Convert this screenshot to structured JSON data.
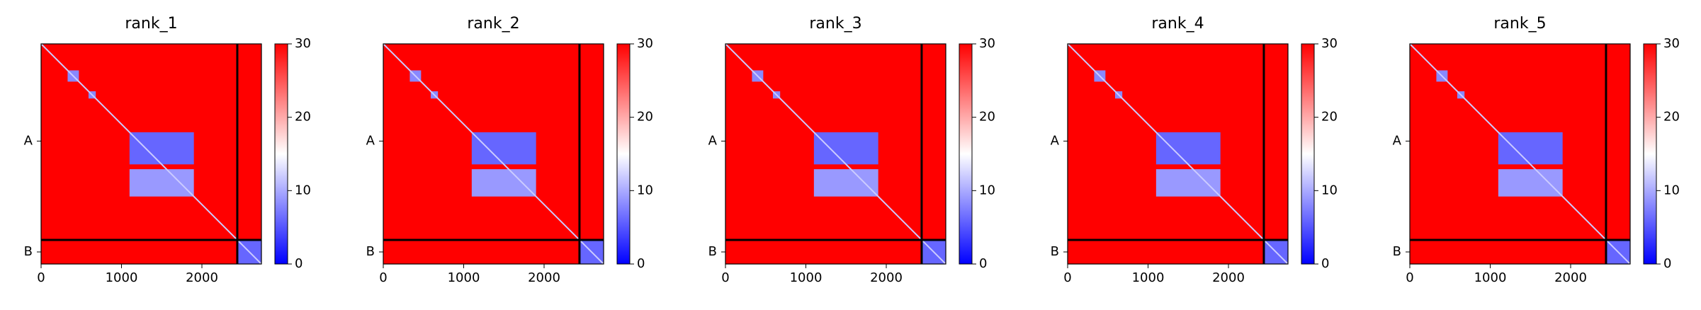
{
  "chart_data": [
    {
      "type": "heatmap",
      "title": "rank_1",
      "xlim": [
        0,
        2740
      ],
      "ylim": [
        2740,
        0
      ],
      "xticks": [
        0,
        1000,
        2000
      ],
      "yticks": [
        {
          "value": 1210,
          "label": "A"
        },
        {
          "value": 2590,
          "label": "B"
        }
      ],
      "boundaries": [
        2440
      ],
      "clim": [
        0,
        30
      ],
      "cticks": [
        0,
        10,
        20,
        30
      ],
      "colormap": "bwr",
      "background": 30,
      "diagonal": 12,
      "cells": [
        {
          "x": [
            330,
            470
          ],
          "y": [
            330,
            470
          ],
          "value": 8
        },
        {
          "x": [
            590,
            680
          ],
          "y": [
            590,
            680
          ],
          "value": 8
        },
        {
          "x": [
            1100,
            1900
          ],
          "y": [
            1100,
            1500
          ],
          "value": 6
        },
        {
          "x": [
            1100,
            1900
          ],
          "y": [
            1560,
            1900
          ],
          "value": 9
        },
        {
          "x": [
            2440,
            2740
          ],
          "y": [
            2440,
            2740
          ],
          "value": 6
        }
      ]
    },
    {
      "type": "heatmap",
      "title": "rank_2",
      "xlim": [
        0,
        2740
      ],
      "ylim": [
        2740,
        0
      ],
      "xticks": [
        0,
        1000,
        2000
      ],
      "yticks": [
        {
          "value": 1210,
          "label": "A"
        },
        {
          "value": 2590,
          "label": "B"
        }
      ],
      "boundaries": [
        2440
      ],
      "clim": [
        0,
        30
      ],
      "cticks": [
        0,
        10,
        20,
        30
      ],
      "colormap": "bwr",
      "background": 30,
      "diagonal": 12,
      "cells": [
        {
          "x": [
            330,
            470
          ],
          "y": [
            330,
            470
          ],
          "value": 8
        },
        {
          "x": [
            590,
            680
          ],
          "y": [
            590,
            680
          ],
          "value": 8
        },
        {
          "x": [
            1100,
            1900
          ],
          "y": [
            1100,
            1500
          ],
          "value": 6
        },
        {
          "x": [
            1100,
            1900
          ],
          "y": [
            1560,
            1900
          ],
          "value": 9
        },
        {
          "x": [
            2440,
            2740
          ],
          "y": [
            2440,
            2740
          ],
          "value": 6
        }
      ]
    },
    {
      "type": "heatmap",
      "title": "rank_3",
      "xlim": [
        0,
        2740
      ],
      "ylim": [
        2740,
        0
      ],
      "xticks": [
        0,
        1000,
        2000
      ],
      "yticks": [
        {
          "value": 1210,
          "label": "A"
        },
        {
          "value": 2590,
          "label": "B"
        }
      ],
      "boundaries": [
        2440
      ],
      "clim": [
        0,
        30
      ],
      "cticks": [
        0,
        10,
        20,
        30
      ],
      "colormap": "bwr",
      "background": 30,
      "diagonal": 12,
      "cells": [
        {
          "x": [
            330,
            470
          ],
          "y": [
            330,
            470
          ],
          "value": 8
        },
        {
          "x": [
            590,
            680
          ],
          "y": [
            590,
            680
          ],
          "value": 8
        },
        {
          "x": [
            1100,
            1900
          ],
          "y": [
            1100,
            1500
          ],
          "value": 6
        },
        {
          "x": [
            1100,
            1900
          ],
          "y": [
            1560,
            1900
          ],
          "value": 9
        },
        {
          "x": [
            2440,
            2740
          ],
          "y": [
            2440,
            2740
          ],
          "value": 6
        }
      ]
    },
    {
      "type": "heatmap",
      "title": "rank_4",
      "xlim": [
        0,
        2740
      ],
      "ylim": [
        2740,
        0
      ],
      "xticks": [
        0,
        1000,
        2000
      ],
      "yticks": [
        {
          "value": 1210,
          "label": "A"
        },
        {
          "value": 2590,
          "label": "B"
        }
      ],
      "boundaries": [
        2440
      ],
      "clim": [
        0,
        30
      ],
      "cticks": [
        0,
        10,
        20,
        30
      ],
      "colormap": "bwr",
      "background": 30,
      "diagonal": 12,
      "cells": [
        {
          "x": [
            330,
            470
          ],
          "y": [
            330,
            470
          ],
          "value": 8
        },
        {
          "x": [
            590,
            680
          ],
          "y": [
            590,
            680
          ],
          "value": 8
        },
        {
          "x": [
            1100,
            1900
          ],
          "y": [
            1100,
            1500
          ],
          "value": 6
        },
        {
          "x": [
            1100,
            1900
          ],
          "y": [
            1560,
            1900
          ],
          "value": 9
        },
        {
          "x": [
            2440,
            2740
          ],
          "y": [
            2440,
            2740
          ],
          "value": 6
        }
      ]
    },
    {
      "type": "heatmap",
      "title": "rank_5",
      "xlim": [
        0,
        2740
      ],
      "ylim": [
        2740,
        0
      ],
      "xticks": [
        0,
        1000,
        2000
      ],
      "yticks": [
        {
          "value": 1210,
          "label": "A"
        },
        {
          "value": 2590,
          "label": "B"
        }
      ],
      "boundaries": [
        2440
      ],
      "clim": [
        0,
        30
      ],
      "cticks": [
        0,
        10,
        20,
        30
      ],
      "colormap": "bwr",
      "background": 30,
      "diagonal": 12,
      "cells": [
        {
          "x": [
            330,
            470
          ],
          "y": [
            330,
            470
          ],
          "value": 8
        },
        {
          "x": [
            590,
            680
          ],
          "y": [
            590,
            680
          ],
          "value": 8
        },
        {
          "x": [
            1100,
            1900
          ],
          "y": [
            1100,
            1500
          ],
          "value": 6
        },
        {
          "x": [
            1100,
            1900
          ],
          "y": [
            1560,
            1900
          ],
          "value": 9
        },
        {
          "x": [
            2440,
            2740
          ],
          "y": [
            2440,
            2740
          ],
          "value": 6
        }
      ]
    }
  ]
}
